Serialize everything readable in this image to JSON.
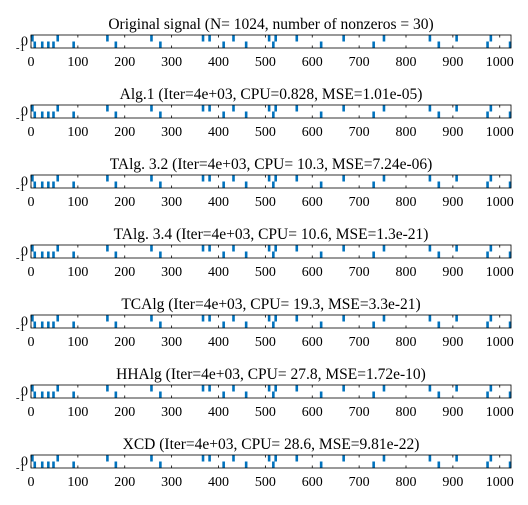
{
  "chart_data": [
    {
      "type": "stem",
      "title": "Original signal (N= 1024, number of nonzeros = 30)",
      "xlim": [
        0,
        1024
      ],
      "ylim": [
        -1,
        1
      ],
      "xticks": [
        0,
        100,
        200,
        300,
        400,
        500,
        600,
        700,
        800,
        900,
        1000
      ],
      "yticks": [
        -1,
        0,
        1
      ],
      "grid": false,
      "color": "#0072BD",
      "spikes": [
        {
          "x": 3,
          "y": 1
        },
        {
          "x": 8,
          "y": -1
        },
        {
          "x": 24,
          "y": -1
        },
        {
          "x": 37,
          "y": -1
        },
        {
          "x": 48,
          "y": -1
        },
        {
          "x": 57,
          "y": 1
        },
        {
          "x": 91,
          "y": -1
        },
        {
          "x": 163,
          "y": 1
        },
        {
          "x": 181,
          "y": -1
        },
        {
          "x": 257,
          "y": 1
        },
        {
          "x": 276,
          "y": -1
        },
        {
          "x": 367,
          "y": 1
        },
        {
          "x": 381,
          "y": 1
        },
        {
          "x": 411,
          "y": -1
        },
        {
          "x": 432,
          "y": 1
        },
        {
          "x": 459,
          "y": -1
        },
        {
          "x": 508,
          "y": 1
        },
        {
          "x": 517,
          "y": -1
        },
        {
          "x": 522,
          "y": 1
        },
        {
          "x": 567,
          "y": 1
        },
        {
          "x": 619,
          "y": -1
        },
        {
          "x": 667,
          "y": 1
        },
        {
          "x": 731,
          "y": -1
        },
        {
          "x": 753,
          "y": 1
        },
        {
          "x": 851,
          "y": 1
        },
        {
          "x": 870,
          "y": -1
        },
        {
          "x": 908,
          "y": 1
        },
        {
          "x": 974,
          "y": -1
        },
        {
          "x": 981,
          "y": 1
        },
        {
          "x": 1022,
          "y": -1
        }
      ]
    },
    {
      "type": "stem",
      "title": "Alg.1 (Iter=4e+03, CPU=0.828, MSE=1.01e-05)",
      "same_as": 0
    },
    {
      "type": "stem",
      "title": "TAlg. 3.2 (Iter=4e+03, CPU= 10.3, MSE=7.24e-06)",
      "same_as": 0
    },
    {
      "type": "stem",
      "title": "TAlg. 3.4 (Iter=4e+03, CPU= 10.6, MSE=1.3e-21)",
      "same_as": 0
    },
    {
      "type": "stem",
      "title": "TCAlg (Iter=4e+03, CPU= 19.3, MSE=3.3e-21)",
      "same_as": 0
    },
    {
      "type": "stem",
      "title": "HHAlg (Iter=4e+03, CPU= 27.8, MSE=1.72e-10)",
      "same_as": 0
    },
    {
      "type": "stem",
      "title": "XCD (Iter=4e+03, CPU= 28.6, MSE=9.81e-22)",
      "same_as": 0
    }
  ]
}
